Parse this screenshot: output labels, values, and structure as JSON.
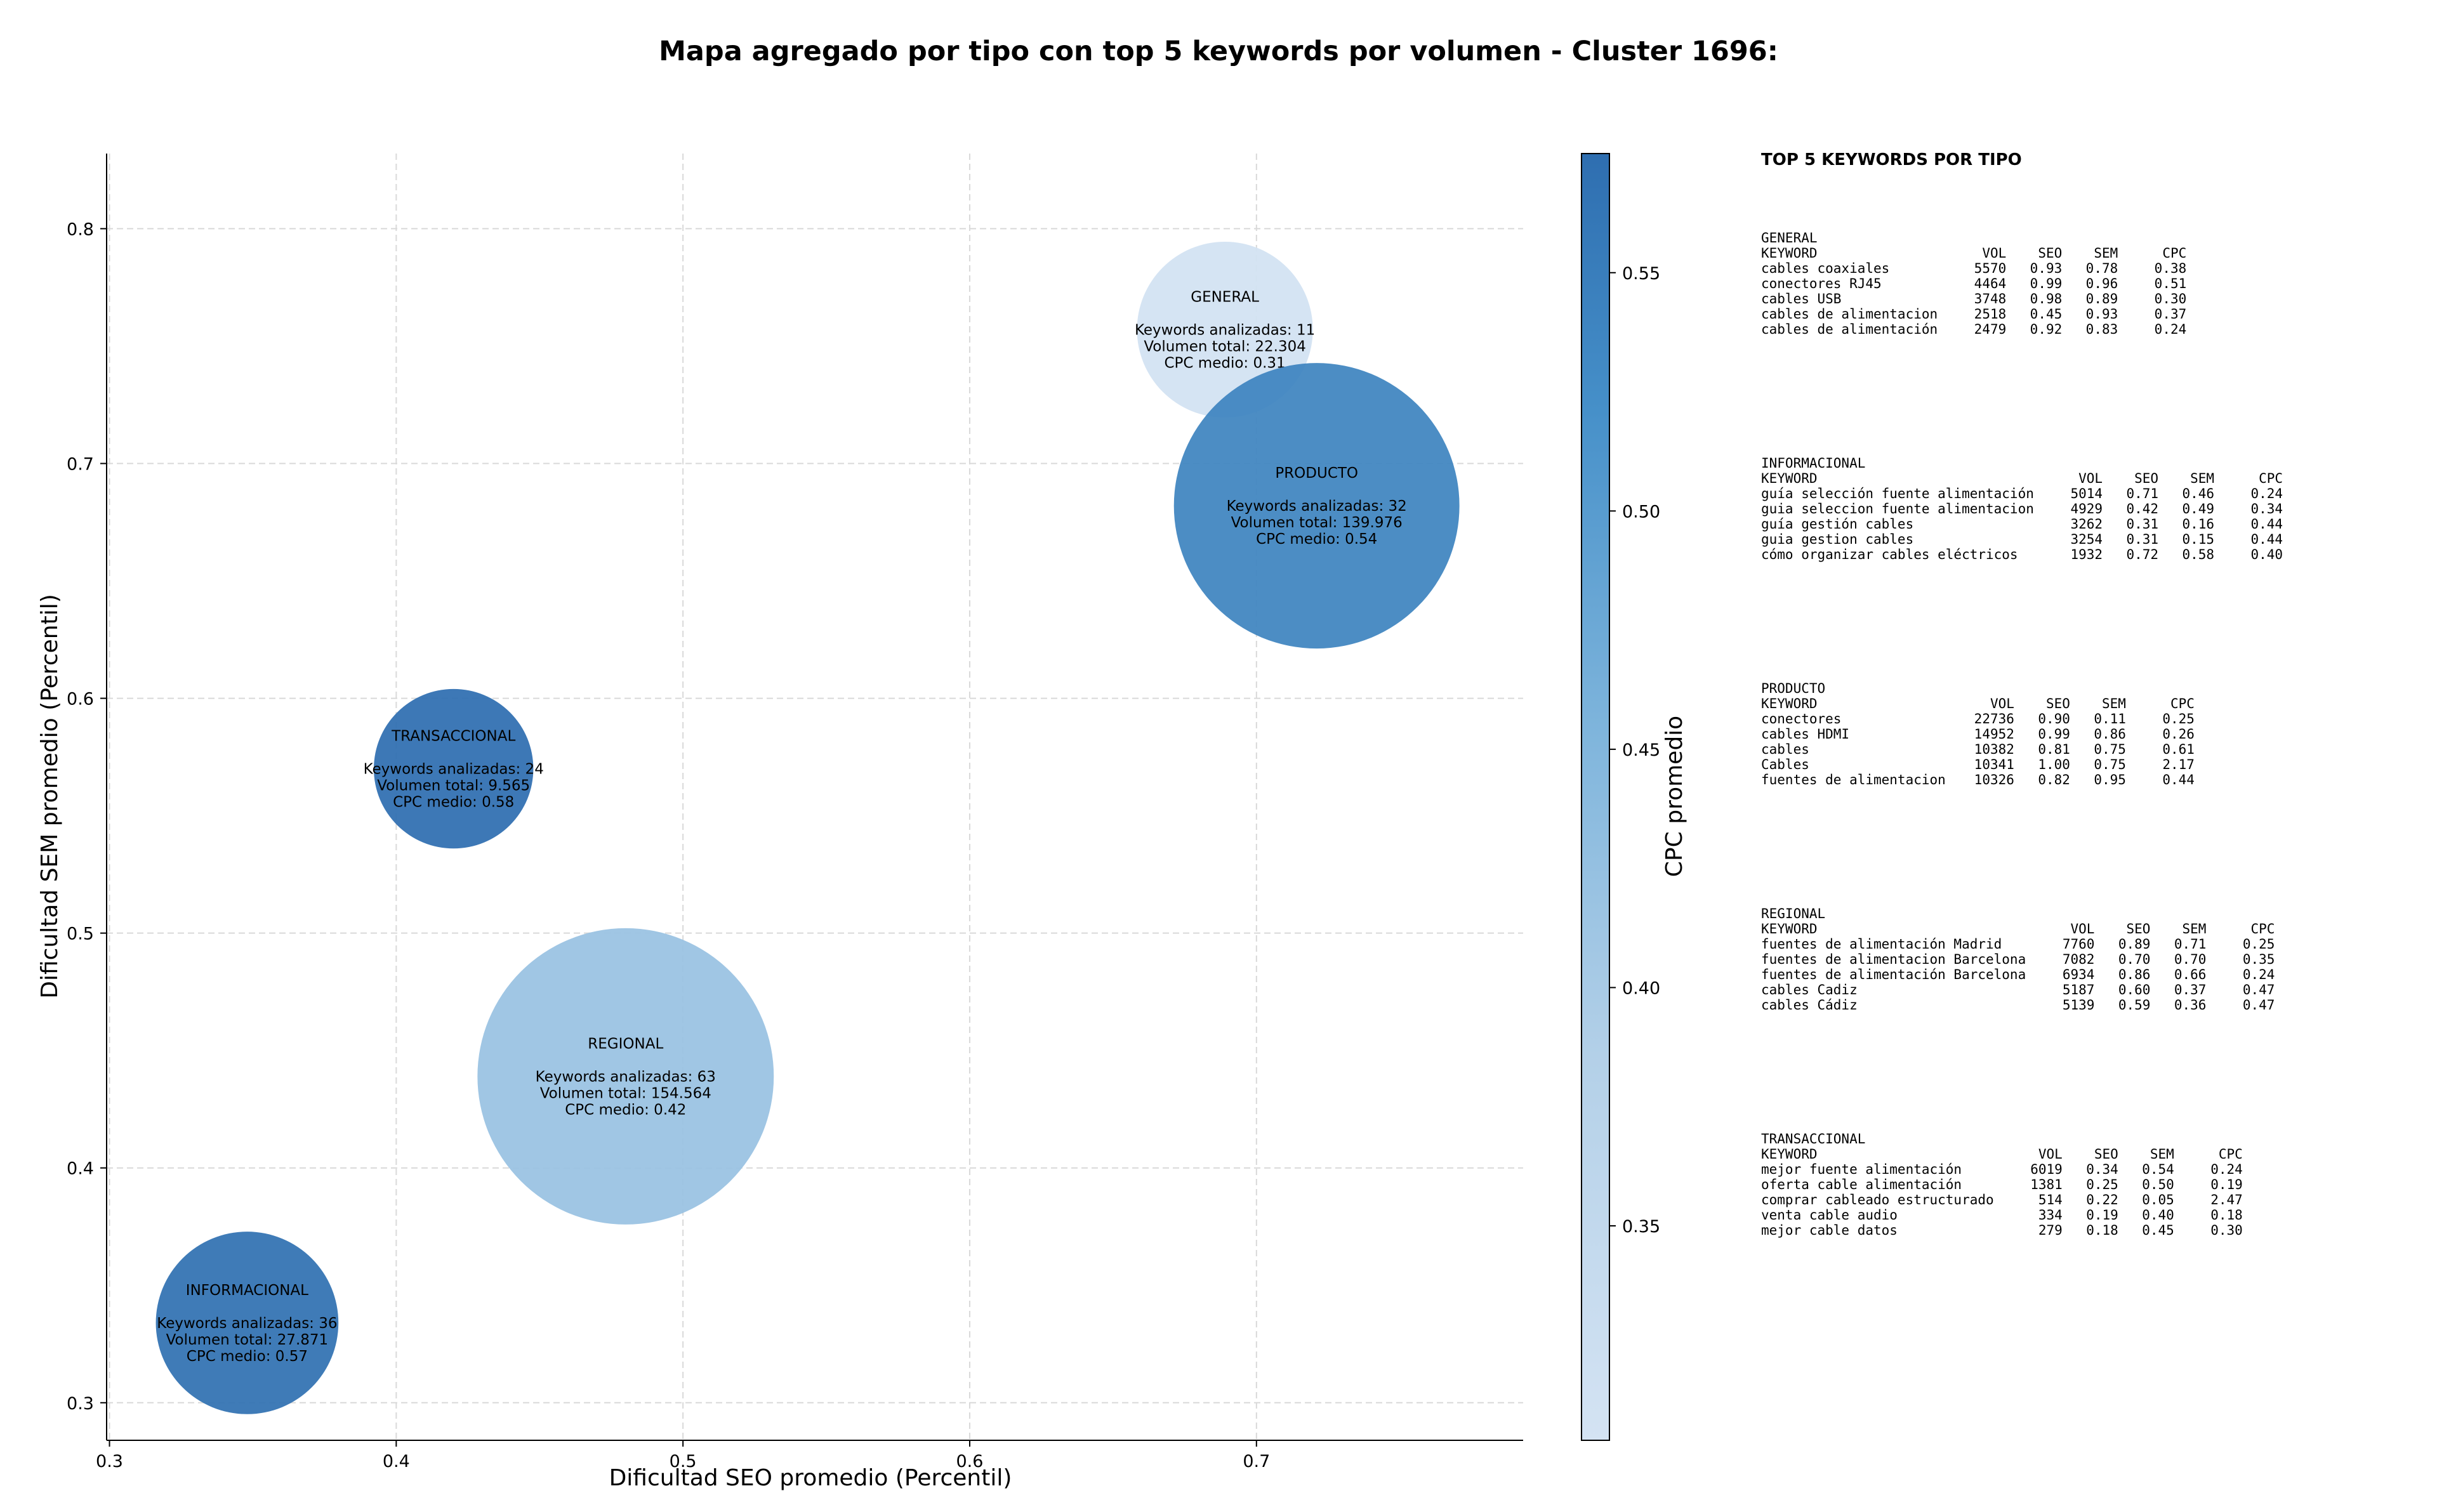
{
  "chart_data": {
    "type": "scatter",
    "title": "Mapa agregado por tipo con top 5 keywords por volumen - Cluster 1696:",
    "xlabel": "Dificultad SEO promedio (Percentil)",
    "ylabel": "Dificultad SEM promedio (Percentil)",
    "xlim": [
      0.299,
      0.793
    ],
    "ylim": [
      0.284,
      0.832
    ],
    "xticks": [
      "0.3",
      "0.4",
      "0.5",
      "0.6",
      "0.7"
    ],
    "yticks": [
      "0.3",
      "0.4",
      "0.5",
      "0.6",
      "0.7",
      "0.8"
    ],
    "grid": true,
    "colorbar": {
      "label": "CPC promedio",
      "range": [
        0.305,
        0.575
      ],
      "ticks": [
        "0.35",
        "0.40",
        "0.45",
        "0.50",
        "0.55"
      ],
      "color_low": "#cfdff0",
      "color_high": "#2e6eb0"
    },
    "points": [
      {
        "name": "GENERAL",
        "x": 0.689,
        "y": 0.757,
        "volume": 22304,
        "cpc": 0.31,
        "lines": [
          "GENERAL",
          "",
          "Keywords analizadas: 11",
          "Volumen total: 22.304",
          "CPC medio: 0.31"
        ]
      },
      {
        "name": "PRODUCTO",
        "x": 0.721,
        "y": 0.682,
        "volume": 139976,
        "cpc": 0.54,
        "lines": [
          "PRODUCTO",
          "",
          "Keywords analizadas: 32",
          "Volumen total: 139.976",
          "CPC medio: 0.54"
        ]
      },
      {
        "name": "TRANSACCIONAL",
        "x": 0.42,
        "y": 0.57,
        "volume": 9565,
        "cpc": 0.58,
        "lines": [
          "TRANSACCIONAL",
          "",
          "Keywords analizadas: 24",
          "Volumen total: 9.565",
          "CPC medio: 0.58"
        ]
      },
      {
        "name": "REGIONAL",
        "x": 0.48,
        "y": 0.439,
        "volume": 154564,
        "cpc": 0.42,
        "lines": [
          "REGIONAL",
          "",
          "Keywords analizadas: 63",
          "Volumen total: 154.564",
          "CPC medio: 0.42"
        ]
      },
      {
        "name": "INFORMACIONAL",
        "x": 0.348,
        "y": 0.334,
        "volume": 27871,
        "cpc": 0.57,
        "lines": [
          "INFORMACIONAL",
          "",
          "Keywords analizadas: 36",
          "Volumen total: 27.871",
          "CPC medio: 0.57"
        ]
      }
    ]
  },
  "panel": {
    "title": "TOP 5 KEYWORDS POR TIPO",
    "header": [
      "KEYWORD",
      "VOL",
      "SEO",
      "SEM",
      "CPC"
    ],
    "groups": [
      {
        "name": "GENERAL",
        "rows": [
          [
            "cables coaxiales",
            "5570",
            "0.93",
            "0.78",
            "0.38"
          ],
          [
            "conectores RJ45",
            "4464",
            "0.99",
            "0.96",
            "0.51"
          ],
          [
            "cables USB",
            "3748",
            "0.98",
            "0.89",
            "0.30"
          ],
          [
            "cables de alimentacion",
            "2518",
            "0.45",
            "0.93",
            "0.37"
          ],
          [
            "cables de alimentación",
            "2479",
            "0.92",
            "0.83",
            "0.24"
          ]
        ]
      },
      {
        "name": "INFORMACIONAL",
        "rows": [
          [
            "guía selección fuente alimentación",
            "5014",
            "0.71",
            "0.46",
            "0.24"
          ],
          [
            "guia seleccion fuente alimentacion",
            "4929",
            "0.42",
            "0.49",
            "0.34"
          ],
          [
            "guía gestión cables",
            "3262",
            "0.31",
            "0.16",
            "0.44"
          ],
          [
            "guia gestion cables",
            "3254",
            "0.31",
            "0.15",
            "0.44"
          ],
          [
            "cómo organizar cables eléctricos",
            "1932",
            "0.72",
            "0.58",
            "0.40"
          ]
        ]
      },
      {
        "name": "PRODUCTO",
        "rows": [
          [
            "conectores",
            "22736",
            "0.90",
            "0.11",
            "0.25"
          ],
          [
            "cables HDMI",
            "14952",
            "0.99",
            "0.86",
            "0.26"
          ],
          [
            "cables",
            "10382",
            "0.81",
            "0.75",
            "0.61"
          ],
          [
            "Cables",
            "10341",
            "1.00",
            "0.75",
            "2.17"
          ],
          [
            "fuentes de alimentacion",
            "10326",
            "0.82",
            "0.95",
            "0.44"
          ]
        ]
      },
      {
        "name": "REGIONAL",
        "rows": [
          [
            "fuentes de alimentación Madrid",
            "7760",
            "0.89",
            "0.71",
            "0.25"
          ],
          [
            "fuentes de alimentacion Barcelona",
            "7082",
            "0.70",
            "0.70",
            "0.35"
          ],
          [
            "fuentes de alimentación Barcelona",
            "6934",
            "0.86",
            "0.66",
            "0.24"
          ],
          [
            "cables Cadiz",
            "5187",
            "0.60",
            "0.37",
            "0.47"
          ],
          [
            "cables Cádiz",
            "5139",
            "0.59",
            "0.36",
            "0.47"
          ]
        ]
      },
      {
        "name": "TRANSACCIONAL",
        "rows": [
          [
            "mejor fuente alimentación",
            "6019",
            "0.34",
            "0.54",
            "0.24"
          ],
          [
            "oferta cable alimentación",
            "1381",
            "0.25",
            "0.50",
            "0.19"
          ],
          [
            "comprar cableado estructurado",
            "514",
            "0.22",
            "0.05",
            "2.47"
          ],
          [
            "venta cable audio",
            "334",
            "0.19",
            "0.40",
            "0.18"
          ],
          [
            "mejor cable datos",
            "279",
            "0.18",
            "0.45",
            "0.30"
          ]
        ]
      }
    ]
  }
}
